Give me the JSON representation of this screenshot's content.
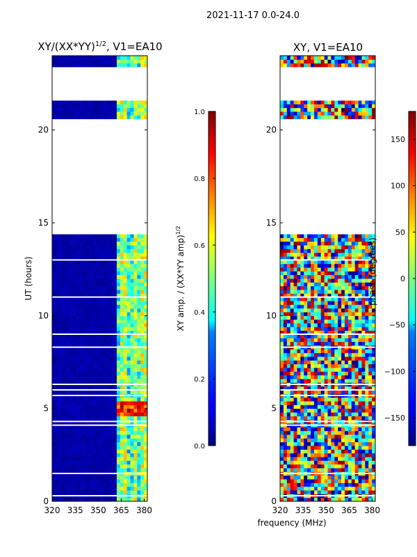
{
  "suptitle": "2021-11-17 0.0-24.0",
  "shared": {
    "xlabel": "frequency (MHz)",
    "ylabel": "UT (hours)",
    "x_ticks": [
      320,
      335,
      350,
      365,
      380
    ],
    "y_ticks": [
      0,
      5,
      10,
      15,
      20
    ],
    "x_range": [
      320,
      382
    ],
    "y_range": [
      0,
      24
    ]
  },
  "chart_data": [
    {
      "type": "heatmap",
      "title_main": "XY/(XX*YY)",
      "title_exp": "1/2",
      "title_tail": ", V1=EA10",
      "xlabel": "frequency (MHz)",
      "ylabel": "UT (hours)",
      "xlim": [
        320,
        382
      ],
      "ylim": [
        0,
        24
      ],
      "colormap": "jet",
      "colorbar": {
        "label_main": "XY amp. / (XX*YY amp)",
        "label_exp": "1/2",
        "range": [
          0.0,
          1.0
        ],
        "ticks": [
          "0.0",
          "0.2",
          "0.4",
          "0.6",
          "0.8",
          "1.0"
        ],
        "tick_values": [
          0.0,
          0.2,
          0.4,
          0.6,
          0.8,
          1.0
        ]
      },
      "data_gaps_hours": [
        [
          14.4,
          20.5
        ],
        [
          21.7,
          23.3
        ]
      ],
      "features": "low amplitude (~0.0) at 320-360 MHz; bright channels near 363-380 MHz; peak ~1.0 near 4.5-5.2 h"
    },
    {
      "type": "heatmap",
      "title_main": "XY, V1=EA10",
      "xlabel": "frequency (MHz)",
      "ylabel": "UT (hours)",
      "xlim": [
        320,
        382
      ],
      "ylim": [
        0,
        24
      ],
      "colormap": "jet",
      "colorbar": {
        "label_main": "phase (degrees)",
        "range": [
          -180,
          180
        ],
        "ticks": [
          "−150",
          "−100",
          "−50",
          "0",
          "50",
          "100",
          "150"
        ],
        "tick_values": [
          -150,
          -100,
          -50,
          0,
          50,
          100,
          150
        ]
      },
      "data_gaps_hours": [
        [
          14.4,
          20.5
        ],
        [
          21.7,
          23.3
        ]
      ],
      "features": "noisy phase values spanning -180 to 180 degrees"
    }
  ],
  "colors": {
    "jet_low": "#00007f",
    "jet_high": "#7f0000"
  }
}
